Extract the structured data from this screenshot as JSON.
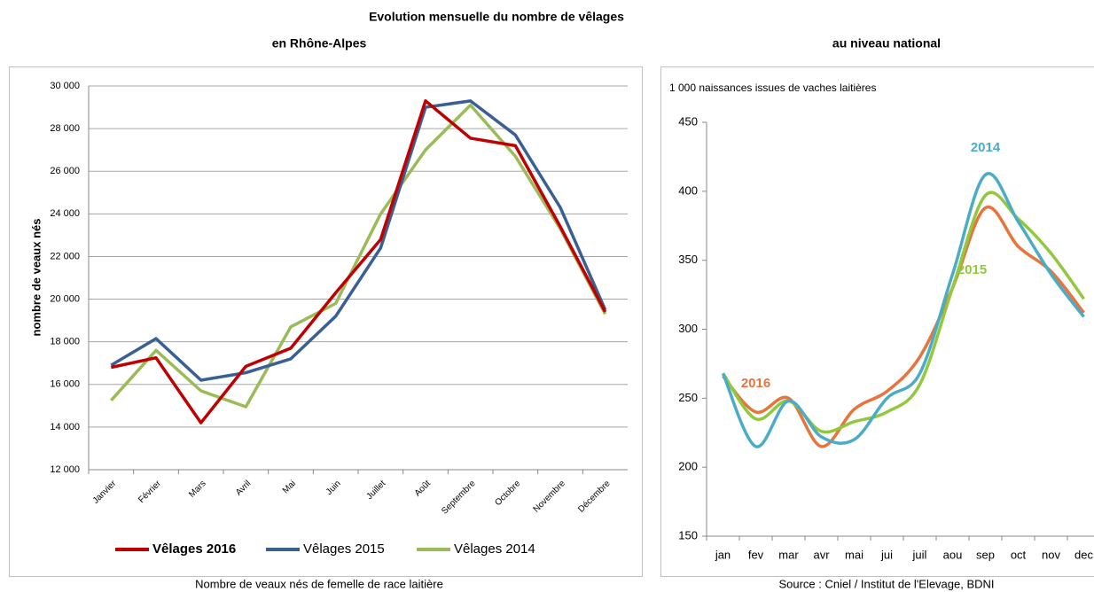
{
  "title": "Evolution mensuelle du nombre de vêlages",
  "chart_data": [
    {
      "type": "line",
      "title": "en Rhône-Alpes",
      "ylabel": "nombre de veaux nés",
      "caption": "Nombre de veaux nés de femelle de race laitière",
      "categories": [
        "Janvier",
        "Février",
        "Mars",
        "Avril",
        "Mai",
        "Juin",
        "Juillet",
        "Août",
        "Septembre",
        "Octobre",
        "Novembre",
        "Décembre"
      ],
      "series": [
        {
          "name": "Vêlages 2016",
          "color": "#c00000",
          "values": [
            16800,
            17250,
            14200,
            16850,
            17700,
            20300,
            22800,
            29300,
            27550,
            27200,
            23400,
            19400
          ]
        },
        {
          "name": "Vêlages 2015",
          "color": "#3a5f94",
          "values": [
            16900,
            18150,
            16200,
            16550,
            17200,
            19200,
            22400,
            29000,
            29300,
            27700,
            24300,
            19500
          ]
        },
        {
          "name": "Vêlages 2014",
          "color": "#9bbb59",
          "values": [
            15250,
            17600,
            15700,
            14950,
            18700,
            19800,
            24000,
            27000,
            29100,
            26700,
            23300,
            19300
          ]
        }
      ],
      "ylim": [
        12000,
        30000
      ],
      "yticks": [
        {
          "value": 12000,
          "label": "12 000"
        },
        {
          "value": 14000,
          "label": "14 000"
        },
        {
          "value": 16000,
          "label": "16 000"
        },
        {
          "value": 18000,
          "label": "18 000"
        },
        {
          "value": 20000,
          "label": "20 000"
        },
        {
          "value": 22000,
          "label": "22 000"
        },
        {
          "value": 24000,
          "label": "24 000"
        },
        {
          "value": 26000,
          "label": "26 000"
        },
        {
          "value": 28000,
          "label": "28 000"
        },
        {
          "value": 30000,
          "label": "30 000"
        }
      ],
      "grid": true,
      "legend": "bottom",
      "smooth": false
    },
    {
      "type": "line",
      "title": "au niveau national",
      "ylabel": "1 000 naissances issues de vaches laitières",
      "caption": "Source : Cniel / Institut de l'Elevage, BDNI",
      "categories": [
        "jan",
        "fev",
        "mar",
        "avr",
        "mai",
        "jui",
        "juil",
        "aou",
        "sep",
        "oct",
        "nov",
        "dec"
      ],
      "series": [
        {
          "name": "2014",
          "color": "#4bacc6",
          "values": [
            268,
            215,
            248,
            222,
            220,
            250,
            268,
            340,
            412,
            378,
            340,
            309
          ]
        },
        {
          "name": "2015",
          "color": "#92c83e",
          "values": [
            268,
            235,
            248,
            226,
            233,
            240,
            260,
            330,
            397,
            380,
            355,
            322
          ]
        },
        {
          "name": "2016",
          "color": "#e8743b",
          "values": [
            266,
            240,
            250,
            215,
            242,
            255,
            280,
            330,
            388,
            360,
            342,
            312
          ]
        }
      ],
      "ylim": [
        150,
        450
      ],
      "yticks": [
        150,
        200,
        250,
        300,
        350,
        400,
        450
      ],
      "grid": false,
      "smooth": true
    }
  ]
}
